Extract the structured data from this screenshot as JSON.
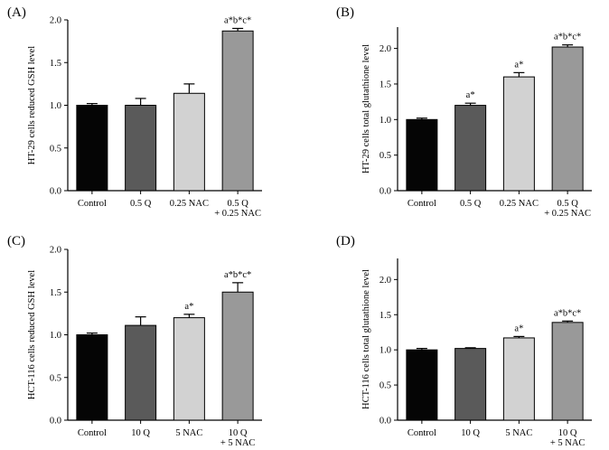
{
  "chart_data": [
    {
      "panel": "(A)",
      "type": "bar",
      "ylabel": "HT-29 cells reduced GSH level",
      "ylim": [
        0,
        2.0
      ],
      "yticks": [
        "0.0",
        "0.5",
        "1.0",
        "1.5",
        "2.0"
      ],
      "categories": [
        [
          "Control"
        ],
        [
          "0.5 Q"
        ],
        [
          "0.25 NAC"
        ],
        [
          "0.5 Q",
          "+ 0.25 NAC"
        ]
      ],
      "values": [
        1.0,
        1.0,
        1.14,
        1.87
      ],
      "errors": [
        0.02,
        0.08,
        0.11,
        0.03
      ],
      "annotations": [
        "",
        "",
        "",
        "a*b*c*"
      ],
      "colors": [
        "#050505",
        "#5a5a5a",
        "#d2d2d2",
        "#999999"
      ]
    },
    {
      "panel": "(B)",
      "type": "bar",
      "ylabel": "HT-29 cells total glutathione level",
      "ylim": [
        0,
        2.3
      ],
      "yticks": [
        "0.0",
        "0.5",
        "1.0",
        "1.5",
        "2.0"
      ],
      "categories": [
        [
          "Control"
        ],
        [
          "0.5 Q"
        ],
        [
          "0.25 NAC"
        ],
        [
          "0.5 Q",
          "+ 0.25 NAC"
        ]
      ],
      "values": [
        1.0,
        1.2,
        1.6,
        2.02
      ],
      "errors": [
        0.02,
        0.03,
        0.06,
        0.03
      ],
      "annotations": [
        "",
        "a*",
        "a*",
        "a*b*c*"
      ],
      "colors": [
        "#050505",
        "#5a5a5a",
        "#d2d2d2",
        "#999999"
      ]
    },
    {
      "panel": "(C)",
      "type": "bar",
      "ylabel": "HCT-116 cells reduced GSH level",
      "ylim": [
        0,
        2.0
      ],
      "yticks": [
        "0.0",
        "0.5",
        "1.0",
        "1.5",
        "2.0"
      ],
      "categories": [
        [
          "Control"
        ],
        [
          "10 Q"
        ],
        [
          "5 NAC"
        ],
        [
          "10 Q",
          "+ 5 NAC"
        ]
      ],
      "values": [
        1.0,
        1.11,
        1.2,
        1.5
      ],
      "errors": [
        0.02,
        0.1,
        0.04,
        0.11
      ],
      "annotations": [
        "",
        "",
        "a*",
        "a*b*c*"
      ],
      "colors": [
        "#050505",
        "#5a5a5a",
        "#d2d2d2",
        "#999999"
      ]
    },
    {
      "panel": "(D)",
      "type": "bar",
      "ylabel": "HCT-116 cells total glutathione level",
      "ylim": [
        0,
        2.3
      ],
      "yticks": [
        "0.0",
        "0.5",
        "1.0",
        "1.5",
        "2.0"
      ],
      "categories": [
        [
          "Control"
        ],
        [
          "10 Q"
        ],
        [
          "5 NAC"
        ],
        [
          "10 Q",
          "+ 5 NAC"
        ]
      ],
      "values": [
        1.0,
        1.02,
        1.17,
        1.39
      ],
      "errors": [
        0.02,
        0.01,
        0.02,
        0.02
      ],
      "annotations": [
        "",
        "",
        "a*",
        "a*b*c*"
      ],
      "colors": [
        "#050505",
        "#5a5a5a",
        "#d2d2d2",
        "#999999"
      ]
    }
  ]
}
